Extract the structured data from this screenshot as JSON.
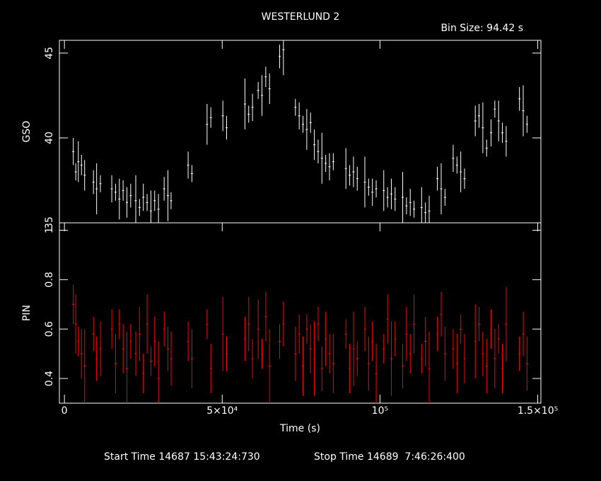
{
  "title": "WESTERLUND 2",
  "bin_size": "Bin Size: 94.42 s",
  "footer": {
    "start": "Start Time 14687 15:43:24:730",
    "stop": "Stop Time 14689  7:46:26:400"
  },
  "chart_data": [
    {
      "type": "errorbar",
      "ylabel": "GSO",
      "color": "#ffffff",
      "xlim": [
        -1600,
        151000
      ],
      "ylim": [
        35,
        45.75
      ],
      "yticks": [
        35,
        40,
        45
      ],
      "x": [
        2800,
        3600,
        4400,
        5400,
        6400,
        9200,
        10200,
        11400,
        15000,
        16200,
        17400,
        18600,
        19800,
        21000,
        22600,
        23800,
        25000,
        26200,
        27400,
        28600,
        29800,
        31600,
        32800,
        33800,
        39200,
        40400,
        45200,
        46400,
        50200,
        51400,
        57200,
        58400,
        59600,
        61400,
        62600,
        63800,
        65000,
        68200,
        69400,
        73200,
        74400,
        75600,
        76800,
        78000,
        79200,
        80400,
        81600,
        82800,
        84000,
        85200,
        89200,
        90400,
        91600,
        92800,
        95200,
        96400,
        97600,
        98800,
        101200,
        102400,
        103600,
        104800,
        107200,
        108400,
        109600,
        110800,
        113200,
        114400,
        115600,
        118200,
        119400,
        120600,
        123200,
        124400,
        125600,
        126800,
        130200,
        131400,
        132600,
        133800,
        135200,
        136400,
        137600,
        138800,
        140000,
        144200,
        145400,
        146600
      ],
      "values": [
        39.2,
        38.0,
        38.6,
        38.4,
        37.8,
        37.4,
        37.0,
        37.3,
        37.0,
        36.8,
        36.4,
        36.9,
        36.2,
        36.6,
        36.3,
        35.9,
        36.5,
        36.2,
        35.7,
        36.3,
        35.8,
        37.0,
        36.6,
        36.3,
        38.4,
        37.9,
        40.8,
        41.2,
        41.3,
        40.6,
        42.0,
        41.4,
        41.8,
        42.8,
        42.5,
        43.6,
        42.9,
        44.8,
        45.2,
        41.8,
        41.3,
        40.8,
        40.5,
        40.9,
        39.6,
        39.2,
        38.8,
        38.5,
        38.3,
        38.6,
        38.2,
        37.8,
        38.0,
        37.6,
        37.4,
        37.1,
        36.8,
        37.0,
        36.9,
        36.5,
        36.7,
        36.4,
        36.5,
        36.0,
        36.2,
        35.8,
        35.9,
        35.6,
        35.7,
        37.6,
        37.0,
        36.5,
        38.8,
        38.4,
        38.0,
        37.6,
        41.0,
        41.3,
        40.6,
        39.4,
        40.3,
        41.7,
        41.0,
        40.3,
        39.8,
        42.3,
        41.6,
        40.8
      ],
      "errors": [
        0.8,
        0.5,
        1.2,
        0.6,
        0.9,
        0.7,
        1.5,
        0.5,
        0.8,
        0.5,
        1.2,
        0.6,
        0.9,
        0.7,
        1.5,
        0.5,
        0.8,
        0.5,
        1.2,
        0.6,
        0.9,
        0.7,
        1.5,
        0.5,
        0.8,
        0.5,
        1.2,
        0.6,
        0.9,
        0.7,
        1.5,
        0.5,
        0.8,
        0.5,
        1.2,
        0.6,
        0.9,
        0.7,
        1.5,
        0.5,
        0.8,
        0.5,
        1.2,
        0.6,
        0.9,
        0.7,
        1.5,
        0.5,
        0.8,
        0.5,
        1.2,
        0.6,
        0.9,
        0.7,
        1.5,
        0.5,
        0.8,
        0.5,
        1.2,
        0.6,
        0.9,
        0.7,
        1.5,
        0.5,
        0.8,
        0.5,
        1.2,
        0.6,
        0.9,
        0.7,
        1.5,
        0.5,
        0.8,
        0.5,
        1.2,
        0.6,
        0.9,
        0.7,
        1.5,
        0.5,
        0.8,
        0.5,
        1.2,
        0.6,
        0.9,
        0.7,
        1.5,
        0.5
      ]
    },
    {
      "type": "errorbar",
      "ylabel": "PIN",
      "xlabel": "Time (s)",
      "color": "#ff0000",
      "xlim": [
        -1600,
        151000
      ],
      "ylim": [
        0.3,
        1.03
      ],
      "yticks": [
        0.4,
        0.6,
        0.8,
        1
      ],
      "xticks": [
        0,
        {
          "value": 50000,
          "label": "5×10⁴"
        },
        {
          "value": 100000,
          "label": "10⁵"
        },
        {
          "value": 150000,
          "label": "1.5×10⁵"
        }
      ],
      "x": [
        2800,
        3600,
        4400,
        5400,
        6400,
        9200,
        10200,
        11400,
        15000,
        16200,
        17400,
        18600,
        19800,
        21000,
        22600,
        23800,
        25000,
        26200,
        27400,
        28600,
        29800,
        31600,
        32800,
        33800,
        39200,
        40400,
        45200,
        46400,
        50200,
        51400,
        57200,
        58400,
        59600,
        61400,
        62600,
        63800,
        65000,
        68200,
        69400,
        73200,
        74400,
        75600,
        76800,
        78000,
        79200,
        80400,
        81600,
        82800,
        84000,
        85200,
        89200,
        90400,
        91600,
        92800,
        95200,
        96400,
        97600,
        98800,
        101200,
        102400,
        103600,
        104800,
        107200,
        108400,
        109600,
        110800,
        113200,
        114400,
        115600,
        118200,
        119400,
        120600,
        123200,
        124400,
        125600,
        126800,
        130200,
        131400,
        132600,
        133800,
        135200,
        136400,
        137600,
        138800,
        140000,
        144200,
        145400,
        146600
      ],
      "values": [
        0.7,
        0.62,
        0.55,
        0.5,
        0.45,
        0.58,
        0.48,
        0.52,
        0.6,
        0.46,
        0.62,
        0.52,
        0.44,
        0.55,
        0.5,
        0.58,
        0.42,
        0.62,
        0.47,
        0.55,
        0.4,
        0.6,
        0.52,
        0.48,
        0.55,
        0.48,
        0.62,
        0.44,
        0.58,
        0.5,
        0.56,
        0.62,
        0.48,
        0.6,
        0.5,
        0.65,
        0.45,
        0.55,
        0.62,
        0.5,
        0.58,
        0.45,
        0.6,
        0.52,
        0.48,
        0.62,
        0.44,
        0.56,
        0.5,
        0.46,
        0.58,
        0.44,
        0.52,
        0.48,
        0.6,
        0.46,
        0.55,
        0.42,
        0.52,
        0.64,
        0.48,
        0.56,
        0.45,
        0.58,
        0.5,
        0.62,
        0.48,
        0.55,
        0.44,
        0.58,
        0.66,
        0.5,
        0.52,
        0.46,
        0.6,
        0.48,
        0.55,
        0.62,
        0.5,
        0.45,
        0.6,
        0.48,
        0.56,
        0.44,
        0.62,
        0.5,
        0.58,
        0.46
      ],
      "errors": [
        0.08,
        0.12,
        0.06,
        0.1,
        0.15,
        0.07,
        0.09,
        0.11,
        0.08,
        0.12,
        0.06,
        0.1,
        0.15,
        0.07,
        0.09,
        0.11,
        0.08,
        0.12,
        0.06,
        0.1,
        0.15,
        0.07,
        0.09,
        0.11,
        0.08,
        0.12,
        0.06,
        0.1,
        0.15,
        0.07,
        0.09,
        0.11,
        0.08,
        0.12,
        0.06,
        0.1,
        0.15,
        0.07,
        0.09,
        0.11,
        0.08,
        0.12,
        0.06,
        0.1,
        0.15,
        0.07,
        0.09,
        0.11,
        0.08,
        0.12,
        0.06,
        0.1,
        0.15,
        0.07,
        0.09,
        0.11,
        0.08,
        0.12,
        0.06,
        0.1,
        0.15,
        0.07,
        0.09,
        0.11,
        0.08,
        0.12,
        0.06,
        0.1,
        0.15,
        0.07,
        0.09,
        0.11,
        0.08,
        0.12,
        0.06,
        0.1,
        0.15,
        0.07,
        0.09,
        0.11,
        0.08,
        0.12,
        0.06,
        0.1,
        0.15,
        0.07,
        0.09,
        0.11
      ]
    }
  ]
}
